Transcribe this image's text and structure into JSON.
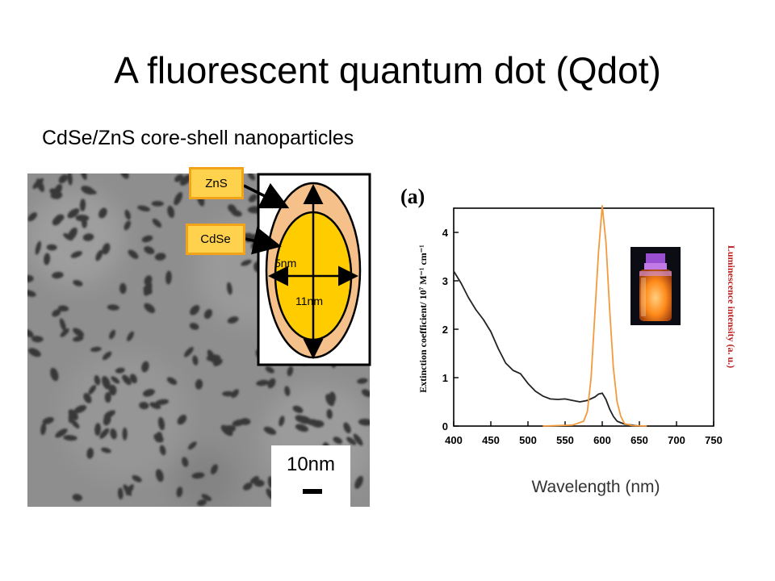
{
  "slide": {
    "title": "A fluorescent quantum dot (Qdot)",
    "subtitle": "CdSe/ZnS core-shell nanoparticles"
  },
  "tem_image": {
    "scale_bar_label": "10nm"
  },
  "diagram": {
    "shell_label": "ZnS",
    "core_label": "CdSe",
    "core_width_label": "5nm",
    "core_length_label": "11nm",
    "shell_color": "#f5c08a",
    "core_color": "#ffcc00"
  },
  "chart_data": {
    "type": "line",
    "panel_label": "(a)",
    "xlabel": "Wavelength (nm)",
    "ylabel_left": "Extinction coefficient/ 10⁷ M⁻¹ cm⁻¹",
    "ylabel_right": "Luminescence intensity (a. u.)",
    "xlim": [
      400,
      750
    ],
    "ylim": [
      0,
      4.5
    ],
    "x_ticks": [
      400,
      450,
      500,
      550,
      600,
      650,
      700,
      750
    ],
    "y_ticks": [
      0,
      1,
      2,
      3,
      4
    ],
    "series": [
      {
        "color": "#222222",
        "x": [
          400,
          410,
          420,
          430,
          440,
          450,
          460,
          470,
          480,
          490,
          500,
          510,
          520,
          530,
          540,
          550,
          560,
          570,
          580,
          590,
          595,
          600,
          605,
          610,
          615,
          620,
          630,
          640,
          650
        ],
        "values": [
          3.2,
          2.95,
          2.65,
          2.4,
          2.2,
          1.95,
          1.6,
          1.3,
          1.15,
          1.08,
          0.88,
          0.72,
          0.62,
          0.56,
          0.55,
          0.56,
          0.53,
          0.5,
          0.53,
          0.6,
          0.66,
          0.68,
          0.55,
          0.35,
          0.2,
          0.1,
          0.04,
          0.02,
          0.0
        ]
      },
      {
        "color": "#f39a3c",
        "x": [
          520,
          560,
          575,
          580,
          585,
          590,
          595,
          600,
          605,
          610,
          615,
          620,
          625,
          630,
          640,
          660
        ],
        "values": [
          0.0,
          0.02,
          0.1,
          0.3,
          1.0,
          2.3,
          3.6,
          4.55,
          3.8,
          2.4,
          1.2,
          0.5,
          0.2,
          0.05,
          0.01,
          0.0
        ]
      }
    ]
  }
}
